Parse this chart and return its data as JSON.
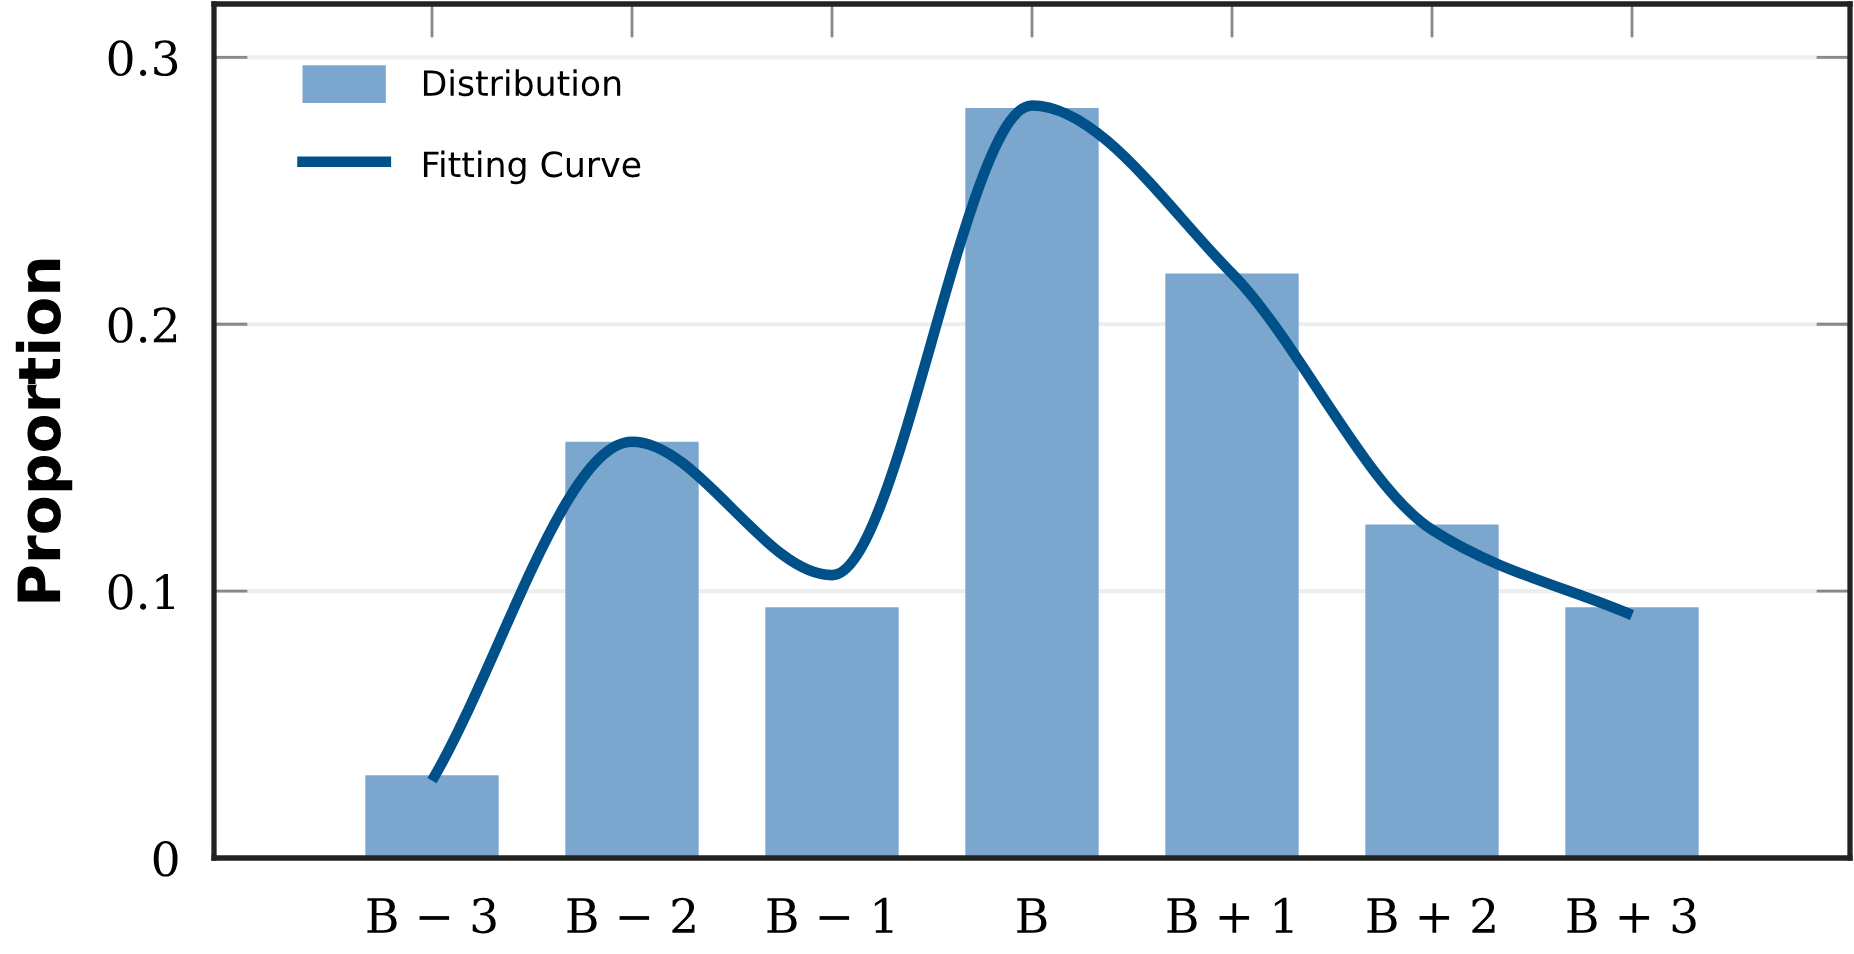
{
  "chart_data": {
    "type": "bar",
    "ylabel": "Proportion",
    "categories": [
      "B − 3",
      "B − 2",
      "B − 1",
      "B",
      "B + 1",
      "B + 2",
      "B + 3"
    ],
    "series": [
      {
        "name": "Distribution",
        "color": "#7ba7cf",
        "values": [
          0.031,
          0.156,
          0.094,
          0.281,
          0.219,
          0.125,
          0.094
        ]
      },
      {
        "name": "Fitting Curve",
        "type": "line",
        "color": "#00508a",
        "values": [
          0.029,
          0.156,
          0.106,
          0.282,
          0.219,
          0.123,
          0.091
        ]
      }
    ],
    "ylim": [
      0,
      0.32
    ],
    "yticks": [
      0,
      0.1,
      0.2,
      0.3
    ],
    "grid": "y",
    "legend": "top left",
    "line_style": "solid",
    "marker": "none"
  }
}
